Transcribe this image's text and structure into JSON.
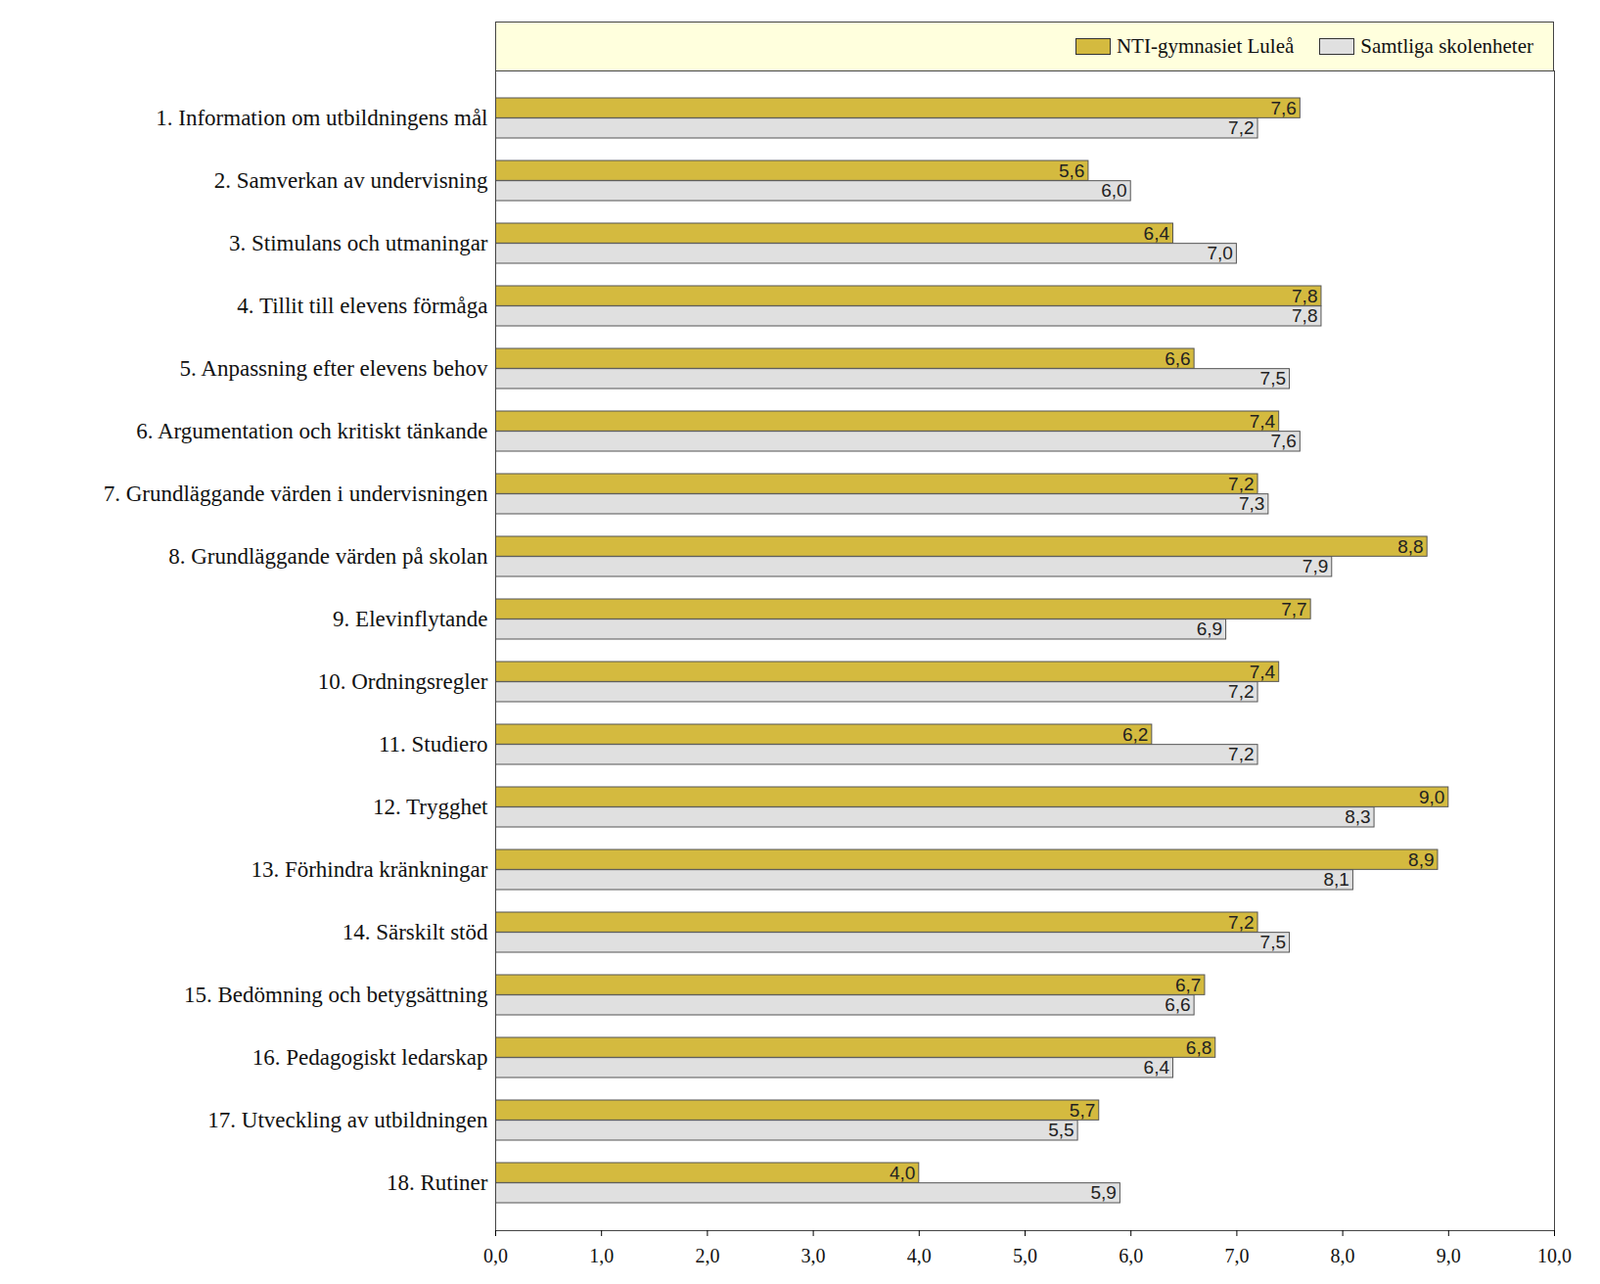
{
  "chart_data": {
    "type": "bar",
    "orientation": "horizontal",
    "legend": "top-right",
    "data_labels": true,
    "grid": false,
    "categories": [
      "1. Information om utbildningens mål",
      "2. Samverkan av undervisning",
      "3. Stimulans och utmaningar",
      "4. Tillit till elevens förmåga",
      "5. Anpassning efter elevens behov",
      "6. Argumentation och kritiskt tänkande",
      "7. Grundläggande värden i undervisningen",
      "8. Grundläggande värden på skolan",
      "9. Elevinflytande",
      "10. Ordningsregler",
      "11. Studiero",
      "12. Trygghet",
      "13. Förhindra kränkningar",
      "14. Särskilt stöd",
      "15. Bedömning och betygsättning",
      "16. Pedagogiskt ledarskap",
      "17. Utveckling av utbildningen",
      "18. Rutiner"
    ],
    "series": [
      {
        "name": "NTI-gymnasiet Luleå",
        "color": "#d4ba3f",
        "values": [
          7.6,
          5.6,
          6.4,
          7.8,
          6.6,
          7.4,
          7.2,
          8.8,
          7.7,
          7.4,
          6.2,
          9.0,
          8.9,
          7.2,
          6.7,
          6.8,
          5.7,
          4.0
        ],
        "value_labels": [
          "7,6",
          "5,6",
          "6,4",
          "7,8",
          "6,6",
          "7,4",
          "7,2",
          "8,8",
          "7,7",
          "7,4",
          "6,2",
          "9,0",
          "8,9",
          "7,2",
          "6,7",
          "6,8",
          "5,7",
          "4,0"
        ]
      },
      {
        "name": "Samtliga skolenheter",
        "color": "#e0e0e0",
        "values": [
          7.2,
          6.0,
          7.0,
          7.8,
          7.5,
          7.6,
          7.3,
          7.9,
          6.9,
          7.2,
          7.2,
          8.3,
          8.1,
          7.5,
          6.6,
          6.4,
          5.5,
          5.9
        ],
        "value_labels": [
          "7,2",
          "6,0",
          "7,0",
          "7,8",
          "7,5",
          "7,6",
          "7,3",
          "7,9",
          "6,9",
          "7,2",
          "7,2",
          "8,3",
          "8,1",
          "7,5",
          "6,6",
          "6,4",
          "5,5",
          "5,9"
        ]
      }
    ],
    "xlim": [
      0,
      10
    ],
    "xticks": [
      {
        "value": 0,
        "label": "0,0"
      },
      {
        "value": 1,
        "label": "1,0"
      },
      {
        "value": 2,
        "label": "2,0"
      },
      {
        "value": 3,
        "label": "3,0"
      },
      {
        "value": 4,
        "label": "4,0"
      },
      {
        "value": 5,
        "label": "5,0"
      },
      {
        "value": 6,
        "label": "6,0"
      },
      {
        "value": 7,
        "label": "7,0"
      },
      {
        "value": 8,
        "label": "8,0"
      },
      {
        "value": 9,
        "label": "9,0"
      },
      {
        "value": 10,
        "label": "10,0"
      }
    ]
  }
}
